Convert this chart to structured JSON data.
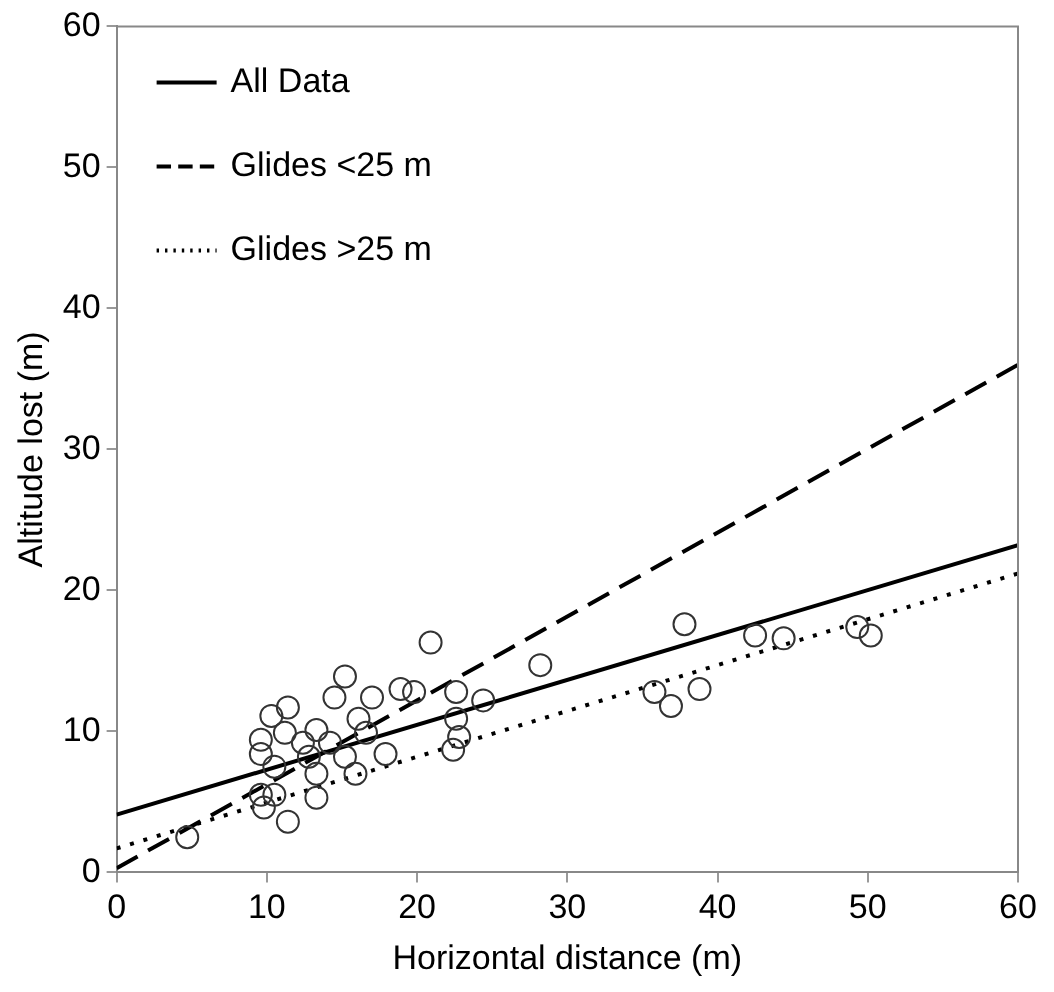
{
  "chart_data": {
    "type": "scatter",
    "xlabel": "Horizontal distance (m)",
    "ylabel": "Altitude lost (m)",
    "xlim": [
      0,
      60
    ],
    "ylim": [
      0,
      60
    ],
    "xticks": [
      0,
      10,
      20,
      30,
      40,
      50,
      60
    ],
    "yticks": [
      0,
      10,
      20,
      30,
      40,
      50,
      60
    ],
    "grid": false,
    "legend": "top left",
    "series": [
      {
        "color": "#333333",
        "marker": "circle",
        "x": [
          4.7,
          20.9,
          15.2,
          14.5,
          17.0,
          18.9,
          19.8,
          22.6,
          24.4,
          11.4,
          10.3,
          9.6,
          9.6,
          11.2,
          13.3,
          14.2,
          16.1,
          16.6,
          17.9,
          22.6,
          22.8,
          22.4,
          13.3,
          15.9,
          12.4,
          9.6,
          10.5,
          9.8,
          13.3,
          11.4,
          12.8,
          15.2,
          28.2,
          10.5,
          37.8,
          35.8,
          36.9,
          38.8,
          42.5,
          44.4,
          49.3,
          50.2
        ],
        "values": [
          2.5,
          16.3,
          13.9,
          12.4,
          12.4,
          13.0,
          12.8,
          12.8,
          12.2,
          11.7,
          11.1,
          9.4,
          8.4,
          9.9,
          10.1,
          9.2,
          10.9,
          9.9,
          8.4,
          10.9,
          9.6,
          8.7,
          7.0,
          7.0,
          9.2,
          5.5,
          5.5,
          4.6,
          5.3,
          3.6,
          8.2,
          8.2,
          14.7,
          7.5,
          17.6,
          12.8,
          11.8,
          13.0,
          16.8,
          16.6,
          17.4,
          16.8
        ]
      },
      {
        "type": "line",
        "name": "All Data",
        "color": "#000000",
        "line_style": "solid",
        "marker": "none",
        "x": [
          0,
          60
        ],
        "values": [
          4.1,
          23.2
        ]
      },
      {
        "type": "line",
        "name": "Glides <25 m",
        "color": "#000000",
        "line_style": "dashed",
        "marker": "none",
        "x": [
          0,
          60
        ],
        "values": [
          0.3,
          36
        ]
      },
      {
        "type": "line",
        "name": "Glides >25 m",
        "color": "#000000",
        "line_style": "dotted",
        "marker": "none",
        "x": [
          0,
          60
        ],
        "values": [
          1.7,
          21.2
        ]
      }
    ]
  }
}
